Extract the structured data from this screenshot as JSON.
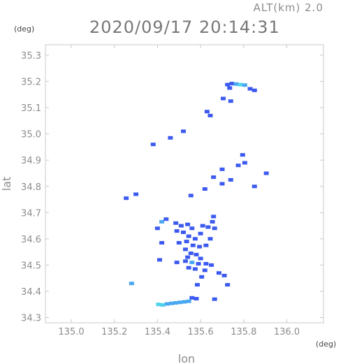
{
  "header": {
    "altitude": "ALT(km) 2.0",
    "timestamp": "2020/09/17 20:14:31"
  },
  "chart_data": {
    "type": "heatmap",
    "xlabel": "lon",
    "ylabel": "lat",
    "x_unit": "(deg)",
    "y_unit": "(deg)",
    "xlim": [
      134.88,
      136.17
    ],
    "ylim": [
      34.28,
      35.34
    ],
    "x_ticks": [
      135.0,
      135.2,
      135.4,
      135.6,
      135.8,
      136.0
    ],
    "y_ticks": [
      34.3,
      34.4,
      34.5,
      34.6,
      34.7,
      34.8,
      34.9,
      35.0,
      35.1,
      35.2,
      35.3
    ],
    "x_tick_labels": [
      "135.0",
      "135.2",
      "135.4",
      "135.6",
      "135.8",
      "136.0"
    ],
    "y_tick_labels": [
      "34.3",
      "34.4",
      "34.5",
      "34.6",
      "34.7",
      "34.8",
      "34.9",
      "35.0",
      "35.1",
      "35.2",
      "35.3"
    ],
    "grid": false,
    "colors": {
      "weak": "#3c5af0",
      "moderate": "#4aa8f0",
      "strong": "#4fd2ec",
      "frame": "#c8c8c8"
    },
    "cells": [
      {
        "lon": 135.725,
        "lat": 35.188,
        "level": "weak"
      },
      {
        "lon": 135.745,
        "lat": 35.192,
        "level": "weak"
      },
      {
        "lon": 135.765,
        "lat": 35.19,
        "level": "moderate"
      },
      {
        "lon": 135.785,
        "lat": 35.188,
        "level": "strong"
      },
      {
        "lon": 135.805,
        "lat": 35.186,
        "level": "moderate"
      },
      {
        "lon": 135.83,
        "lat": 35.172,
        "level": "weak"
      },
      {
        "lon": 135.85,
        "lat": 35.166,
        "level": "weak"
      },
      {
        "lon": 135.735,
        "lat": 35.175,
        "level": "weak"
      },
      {
        "lon": 135.705,
        "lat": 35.135,
        "level": "weak"
      },
      {
        "lon": 135.74,
        "lat": 35.125,
        "level": "weak"
      },
      {
        "lon": 135.63,
        "lat": 35.085,
        "level": "weak"
      },
      {
        "lon": 135.645,
        "lat": 35.07,
        "level": "weak"
      },
      {
        "lon": 135.52,
        "lat": 35.01,
        "level": "weak"
      },
      {
        "lon": 135.46,
        "lat": 34.985,
        "level": "weak"
      },
      {
        "lon": 135.38,
        "lat": 34.96,
        "level": "weak"
      },
      {
        "lon": 135.795,
        "lat": 34.92,
        "level": "weak"
      },
      {
        "lon": 135.805,
        "lat": 34.89,
        "level": "weak"
      },
      {
        "lon": 135.775,
        "lat": 34.88,
        "level": "weak"
      },
      {
        "lon": 135.7,
        "lat": 34.865,
        "level": "weak"
      },
      {
        "lon": 135.905,
        "lat": 34.85,
        "level": "weak"
      },
      {
        "lon": 135.66,
        "lat": 34.835,
        "level": "weak"
      },
      {
        "lon": 135.74,
        "lat": 34.825,
        "level": "weak"
      },
      {
        "lon": 135.7,
        "lat": 34.81,
        "level": "weak"
      },
      {
        "lon": 135.85,
        "lat": 34.8,
        "level": "weak"
      },
      {
        "lon": 135.62,
        "lat": 34.79,
        "level": "weak"
      },
      {
        "lon": 135.3,
        "lat": 34.77,
        "level": "weak"
      },
      {
        "lon": 135.255,
        "lat": 34.755,
        "level": "weak"
      },
      {
        "lon": 135.555,
        "lat": 34.765,
        "level": "weak"
      },
      {
        "lon": 135.66,
        "lat": 34.685,
        "level": "weak"
      },
      {
        "lon": 135.655,
        "lat": 34.665,
        "level": "weak"
      },
      {
        "lon": 135.61,
        "lat": 34.65,
        "level": "weak"
      },
      {
        "lon": 135.635,
        "lat": 34.645,
        "level": "weak"
      },
      {
        "lon": 135.665,
        "lat": 34.64,
        "level": "weak"
      },
      {
        "lon": 135.6,
        "lat": 34.62,
        "level": "weak"
      },
      {
        "lon": 135.645,
        "lat": 34.6,
        "level": "weak"
      },
      {
        "lon": 135.42,
        "lat": 34.665,
        "level": "moderate"
      },
      {
        "lon": 135.4,
        "lat": 34.64,
        "level": "weak"
      },
      {
        "lon": 135.44,
        "lat": 34.675,
        "level": "weak"
      },
      {
        "lon": 135.485,
        "lat": 34.66,
        "level": "weak"
      },
      {
        "lon": 135.51,
        "lat": 34.65,
        "level": "weak"
      },
      {
        "lon": 135.54,
        "lat": 34.655,
        "level": "weak"
      },
      {
        "lon": 135.56,
        "lat": 34.64,
        "level": "weak"
      },
      {
        "lon": 135.52,
        "lat": 34.625,
        "level": "weak"
      },
      {
        "lon": 135.49,
        "lat": 34.63,
        "level": "weak"
      },
      {
        "lon": 135.545,
        "lat": 34.61,
        "level": "weak"
      },
      {
        "lon": 135.575,
        "lat": 34.6,
        "level": "weak"
      },
      {
        "lon": 135.535,
        "lat": 34.59,
        "level": "weak"
      },
      {
        "lon": 135.5,
        "lat": 34.585,
        "level": "weak"
      },
      {
        "lon": 135.42,
        "lat": 34.585,
        "level": "weak"
      },
      {
        "lon": 135.565,
        "lat": 34.575,
        "level": "weak"
      },
      {
        "lon": 135.595,
        "lat": 34.57,
        "level": "weak"
      },
      {
        "lon": 135.625,
        "lat": 34.575,
        "level": "weak"
      },
      {
        "lon": 135.53,
        "lat": 34.56,
        "level": "weak"
      },
      {
        "lon": 135.555,
        "lat": 34.545,
        "level": "weak"
      },
      {
        "lon": 135.58,
        "lat": 34.54,
        "level": "weak"
      },
      {
        "lon": 135.54,
        "lat": 34.53,
        "level": "weak"
      },
      {
        "lon": 135.6,
        "lat": 34.525,
        "level": "weak"
      },
      {
        "lon": 135.53,
        "lat": 34.515,
        "level": "weak"
      },
      {
        "lon": 135.56,
        "lat": 34.51,
        "level": "moderate"
      },
      {
        "lon": 135.59,
        "lat": 34.505,
        "level": "weak"
      },
      {
        "lon": 135.625,
        "lat": 34.505,
        "level": "weak"
      },
      {
        "lon": 135.65,
        "lat": 34.5,
        "level": "weak"
      },
      {
        "lon": 135.545,
        "lat": 34.49,
        "level": "weak"
      },
      {
        "lon": 135.575,
        "lat": 34.485,
        "level": "weak"
      },
      {
        "lon": 135.62,
        "lat": 34.48,
        "level": "weak"
      },
      {
        "lon": 135.685,
        "lat": 34.47,
        "level": "weak"
      },
      {
        "lon": 135.71,
        "lat": 34.46,
        "level": "weak"
      },
      {
        "lon": 135.41,
        "lat": 34.52,
        "level": "weak"
      },
      {
        "lon": 135.605,
        "lat": 34.455,
        "level": "weak"
      },
      {
        "lon": 135.585,
        "lat": 34.425,
        "level": "weak"
      },
      {
        "lon": 135.725,
        "lat": 34.425,
        "level": "weak"
      },
      {
        "lon": 135.49,
        "lat": 34.51,
        "level": "weak"
      },
      {
        "lon": 135.28,
        "lat": 34.43,
        "level": "moderate"
      },
      {
        "lon": 135.56,
        "lat": 34.375,
        "level": "weak"
      },
      {
        "lon": 135.58,
        "lat": 34.372,
        "level": "weak"
      },
      {
        "lon": 135.665,
        "lat": 34.37,
        "level": "weak"
      },
      {
        "lon": 135.405,
        "lat": 34.35,
        "level": "strong"
      },
      {
        "lon": 135.425,
        "lat": 34.348,
        "level": "strong"
      },
      {
        "lon": 135.445,
        "lat": 34.352,
        "level": "moderate"
      },
      {
        "lon": 135.465,
        "lat": 34.354,
        "level": "moderate"
      },
      {
        "lon": 135.485,
        "lat": 34.356,
        "level": "moderate"
      },
      {
        "lon": 135.505,
        "lat": 34.358,
        "level": "moderate"
      },
      {
        "lon": 135.525,
        "lat": 34.36,
        "level": "moderate"
      },
      {
        "lon": 135.545,
        "lat": 34.362,
        "level": "moderate"
      }
    ]
  }
}
